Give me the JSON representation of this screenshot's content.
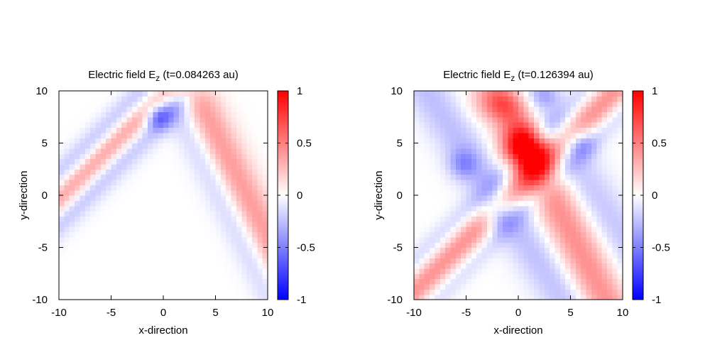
{
  "chart_data": [
    {
      "type": "heatmap",
      "title_prefix": "Electric field E",
      "title_subscript": "z",
      "title_suffix": " (t=0.084263 au)",
      "xlabel": "x-direction",
      "ylabel": "y-direction",
      "xlim": [
        -10,
        10
      ],
      "ylim": [
        -10,
        10
      ],
      "xticks": [
        "-10",
        "-5",
        "0",
        "5",
        "10"
      ],
      "yticks": [
        "-10",
        "-5",
        "0",
        "5",
        "10"
      ],
      "colorbar": {
        "range": [
          -1,
          1
        ],
        "ticks": [
          "-1",
          "-0.5",
          "0",
          "0.5",
          "1"
        ],
        "colors": [
          "#0000ff",
          "#ffffff",
          "#ff0000"
        ]
      },
      "grid_resolution": 40,
      "features": [
        {
          "kind": "band",
          "dir": [
            1,
            1
          ],
          "center": [
            -4.6,
            5.0
          ],
          "offset": 0,
          "width": 1.0,
          "amp": 0.45
        },
        {
          "kind": "band",
          "dir": [
            1,
            1
          ],
          "center": [
            -4.6,
            5.0
          ],
          "offset": 1.55,
          "width": 0.85,
          "amp": -0.28
        },
        {
          "kind": "band",
          "dir": [
            1,
            1
          ],
          "center": [
            -4.6,
            5.0
          ],
          "offset": -1.45,
          "width": 0.9,
          "amp": -0.3
        },
        {
          "kind": "band",
          "dir": [
            1,
            -2
          ],
          "center": [
            5.9,
            4.0
          ],
          "offset": 0,
          "width": 1.3,
          "amp": 0.4
        },
        {
          "kind": "band",
          "dir": [
            1,
            -2
          ],
          "center": [
            5.9,
            4.0
          ],
          "offset": -2.1,
          "width": 1.0,
          "amp": -0.2
        },
        {
          "kind": "blob",
          "center": [
            -0.5,
            7.6
          ],
          "sigma": [
            0.9,
            0.9
          ],
          "amp": -0.5
        }
      ]
    },
    {
      "type": "heatmap",
      "title_prefix": "Electric field E",
      "title_subscript": "z",
      "title_suffix": " (t=0.126394 au)",
      "xlabel": "x-direction",
      "ylabel": "y-direction",
      "xlim": [
        -10,
        10
      ],
      "ylim": [
        -10,
        10
      ],
      "xticks": [
        "-10",
        "-5",
        "0",
        "5",
        "10"
      ],
      "yticks": [
        "-10",
        "-5",
        "0",
        "5",
        "10"
      ],
      "colorbar": {
        "range": [
          -1,
          1
        ],
        "ticks": [
          "-1",
          "-0.5",
          "0",
          "0.5",
          "1"
        ],
        "colors": [
          "#0000ff",
          "#ffffff",
          "#ff0000"
        ]
      },
      "grid_resolution": 40,
      "features": [
        {
          "kind": "blob",
          "center": [
            0.6,
            4.5
          ],
          "sigma": [
            1.4,
            1.5
          ],
          "amp": 0.95
        },
        {
          "kind": "band",
          "dir": [
            1,
            1
          ],
          "center": [
            -4.5,
            -3.8
          ],
          "offset": 0,
          "width": 1.2,
          "amp": 0.45
        },
        {
          "kind": "band",
          "dir": [
            1,
            1
          ],
          "center": [
            -4.5,
            -3.8
          ],
          "offset": -1.75,
          "width": 0.8,
          "amp": -0.22
        },
        {
          "kind": "band",
          "dir": [
            1,
            1
          ],
          "center": [
            -4.5,
            -3.8
          ],
          "offset": 1.9,
          "width": 0.8,
          "amp": -0.22
        },
        {
          "kind": "band",
          "dir": [
            1,
            -2
          ],
          "center": [
            5.0,
            -3.5
          ],
          "offset": 0,
          "width": 1.5,
          "amp": 0.45
        },
        {
          "kind": "band",
          "dir": [
            1,
            -1.5
          ],
          "center": [
            -4.8,
            4.0
          ],
          "offset": 0,
          "width": 1.5,
          "amp": -0.25
        },
        {
          "kind": "band",
          "dir": [
            1,
            -1.5
          ],
          "center": [
            5.0,
            3.5
          ],
          "offset": 0,
          "width": 1.5,
          "amp": -0.22
        },
        {
          "kind": "blob",
          "center": [
            -1.6,
            8.7
          ],
          "sigma": [
            1.8,
            1.1
          ],
          "amp": 0.35
        },
        {
          "kind": "blob",
          "center": [
            -5.3,
            3.0
          ],
          "sigma": [
            1.0,
            1.0
          ],
          "amp": -0.3
        },
        {
          "kind": "blob",
          "center": [
            -2.0,
            -2.0
          ],
          "sigma": [
            1.0,
            1.0
          ],
          "amp": -0.3
        },
        {
          "kind": "blob",
          "center": [
            6.0,
            5.0
          ],
          "sigma": [
            1.0,
            1.0
          ],
          "amp": -0.3
        },
        {
          "kind": "blob",
          "center": [
            2.6,
            9.6
          ],
          "sigma": [
            1.0,
            0.8
          ],
          "amp": -0.25
        }
      ]
    }
  ]
}
